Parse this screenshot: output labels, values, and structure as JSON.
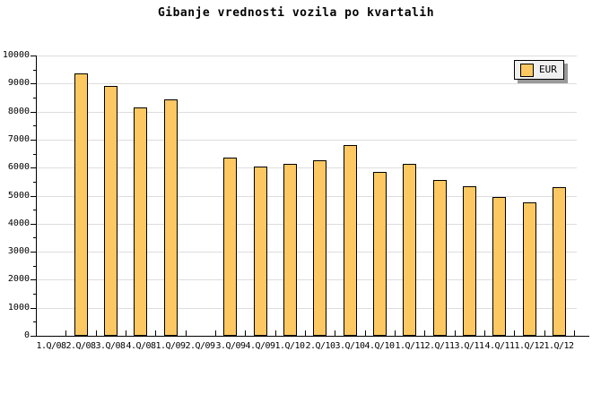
{
  "chart_data": {
    "type": "bar",
    "title": "Gibanje vrednosti vozila po kvartalih",
    "legend_label": "EUR",
    "legend_position": "top-right",
    "xlabel": "",
    "ylabel": "",
    "ylim": [
      0,
      10000
    ],
    "y_major_step": 1000,
    "y_minor_step": 500,
    "grid": "horizontal-major",
    "categories": [
      "1.Q/08",
      "2.Q/08",
      "3.Q/08",
      "4.Q/08",
      "1.Q/09",
      "2.Q/09",
      "3.Q/09",
      "4.Q/09",
      "1.Q/10",
      "2.Q/10",
      "3.Q/10",
      "4.Q/10",
      "1.Q/11",
      "2.Q/11",
      "3.Q/11",
      "4.Q/11",
      "1.Q/12",
      "1.Q/12"
    ],
    "values": [
      null,
      9350,
      8900,
      8150,
      8450,
      null,
      6350,
      6050,
      6150,
      6250,
      6800,
      5850,
      6150,
      5550,
      5350,
      4950,
      4750,
      5300
    ],
    "colors": {
      "bar_fill": "#FDC862",
      "bar_border": "#000000",
      "grid": "#DDDDDD",
      "axis": "#000000",
      "text": "#000000",
      "legend_bg": "#F0F0F0",
      "legend_border": "#000000",
      "legend_shadow": "#999999",
      "background": "#FFFFFF"
    }
  }
}
